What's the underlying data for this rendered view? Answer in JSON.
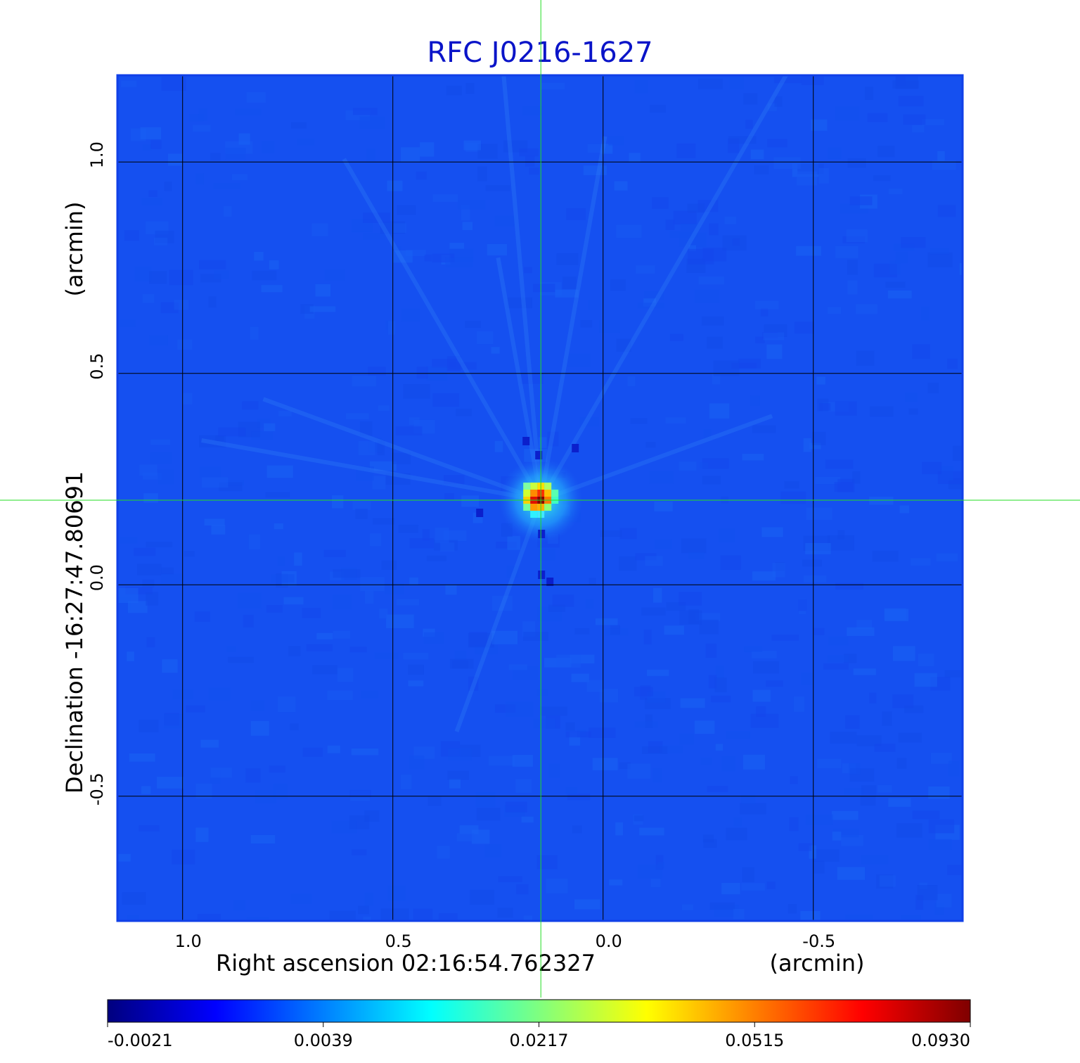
{
  "title": "RFC J0216-1627",
  "x_axis": {
    "label": "Right ascension  02:16:54.762327",
    "unit": "(arcmin)",
    "ticks": [
      "1.0",
      "0.5",
      "0.0",
      "-0.5"
    ],
    "tick_values": [
      1.0,
      0.5,
      0.0,
      -0.5
    ],
    "range": [
      1.155,
      -0.855
    ]
  },
  "y_axis": {
    "label": "Declination  -16:27:47.80691",
    "unit": "(arcmin)",
    "ticks": [
      "1.0",
      "0.5",
      "0.0",
      "-0.5"
    ],
    "tick_values": [
      1.0,
      0.5,
      0.0,
      -0.5
    ],
    "range": [
      -0.795,
      1.205
    ]
  },
  "crosshair": {
    "ra_offset_arcmin": 0.148,
    "dec_offset_arcmin": 0.2,
    "color": "#22dd22"
  },
  "source": {
    "ra_offset_arcmin": 0.148,
    "dec_offset_arcmin": 0.2,
    "peak_value": 0.093
  },
  "colorbar": {
    "ticks": [
      "-0.0021",
      "0.0039",
      "0.0217",
      "0.0515",
      "0.0930"
    ],
    "colormap": "jet",
    "colors": [
      "#00007f",
      "#0000ff",
      "#007fff",
      "#00ffff",
      "#7fff7f",
      "#ffff00",
      "#ff7f00",
      "#ff0000",
      "#7f0000"
    ]
  },
  "colors": {
    "background_map": "#1550f0",
    "grid": "#000000",
    "title": "#0a14c8"
  }
}
